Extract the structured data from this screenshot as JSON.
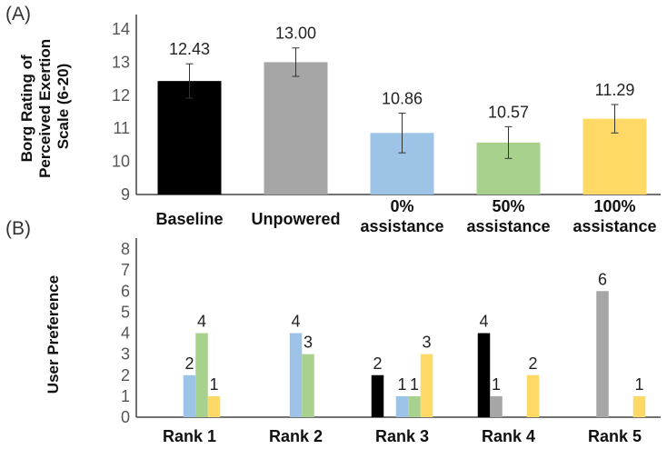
{
  "colors": {
    "baseline": "#000000",
    "unpowered": "#a6a6a6",
    "assist0": "#9dc3e6",
    "assist50": "#a9d18e",
    "assist100": "#ffd966"
  },
  "chart_data": [
    {
      "panel": "(A)",
      "type": "bar",
      "ylabel_lines": [
        "Borg Rating of",
        "Perceived Exertion",
        "Scale (6-20)"
      ],
      "ylim": [
        9,
        14
      ],
      "yticks": [
        9,
        10,
        11,
        12,
        13,
        14
      ],
      "categories": [
        {
          "lines": [
            "Baseline"
          ],
          "value": 12.43,
          "label": "12.43",
          "err": 0.52,
          "color": "baseline"
        },
        {
          "lines": [
            "Unpowered"
          ],
          "value": 13.0,
          "label": "13.00",
          "err": 0.43,
          "color": "unpowered"
        },
        {
          "lines": [
            "0%",
            "assistance"
          ],
          "value": 10.86,
          "label": "10.86",
          "err": 0.6,
          "color": "assist0"
        },
        {
          "lines": [
            "50%",
            "assistance"
          ],
          "value": 10.57,
          "label": "10.57",
          "err": 0.48,
          "color": "assist50"
        },
        {
          "lines": [
            "100%",
            "assistance"
          ],
          "value": 11.29,
          "label": "11.29",
          "err": 0.43,
          "color": "assist100"
        }
      ]
    },
    {
      "panel": "(B)",
      "type": "bar",
      "ylabel": "User Preference",
      "ylim": [
        0,
        8
      ],
      "yticks": [
        0,
        1,
        2,
        3,
        4,
        5,
        6,
        7,
        8
      ],
      "categories": [
        "Rank 1",
        "Rank 2",
        "Rank 3",
        "Rank 4",
        "Rank 5"
      ],
      "series": [
        {
          "color": "baseline",
          "values": [
            0,
            0,
            2,
            4,
            0
          ]
        },
        {
          "color": "unpowered",
          "values": [
            0,
            0,
            0,
            1,
            6
          ]
        },
        {
          "color": "assist0",
          "values": [
            2,
            4,
            1,
            0,
            0
          ]
        },
        {
          "color": "assist50",
          "values": [
            4,
            3,
            1,
            0,
            0
          ]
        },
        {
          "color": "assist100",
          "values": [
            1,
            0,
            3,
            2,
            1
          ]
        }
      ]
    }
  ]
}
